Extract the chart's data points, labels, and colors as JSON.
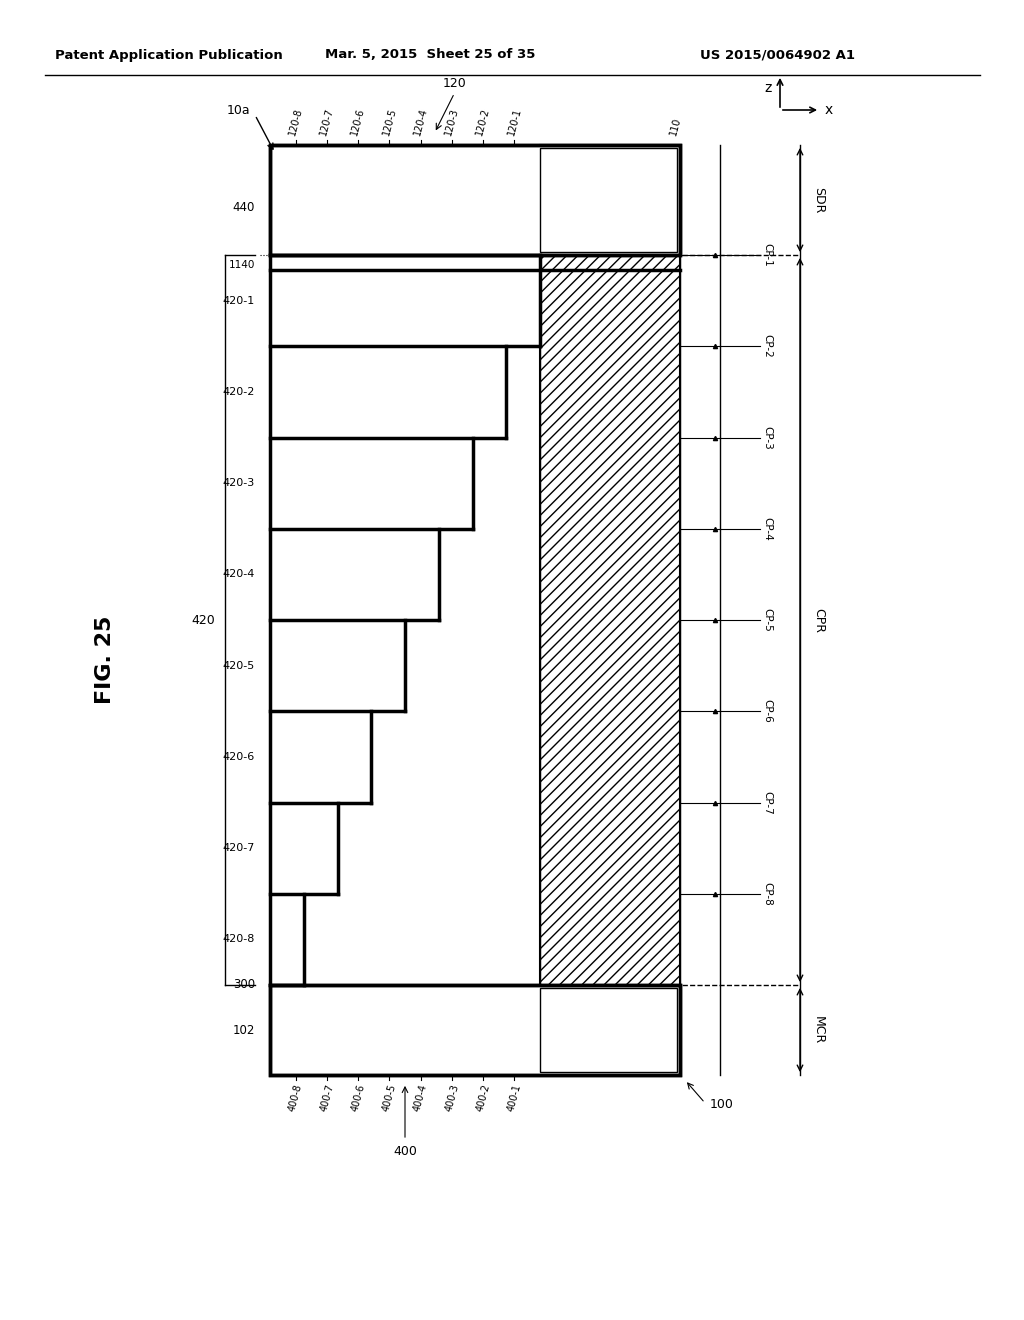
{
  "header_left": "Patent Application Publication",
  "header_mid": "Mar. 5, 2015  Sheet 25 of 35",
  "header_right": "US 2015/0064902 A1",
  "fig_label": "FIG. 25",
  "bg_color": "#ffffff",
  "line_color": "#000000",
  "n_layers": 8,
  "layer_labels": [
    "420-1",
    "420-2",
    "420-3",
    "420-4",
    "420-5",
    "420-6",
    "420-7",
    "420-8"
  ],
  "cp_labels": [
    "CP-1",
    "CP-2",
    "CP-3",
    "CP-4",
    "CP-5",
    "CP-6",
    "CP-7",
    "CP-8"
  ],
  "top_labels": [
    "120-8",
    "120-7",
    "120-6",
    "120-5",
    "120-4",
    "120-3",
    "120-2",
    "120-1",
    "110"
  ],
  "bot_labels": [
    "400-8",
    "400-7",
    "400-6",
    "400-5",
    "400-4",
    "400-3",
    "400-2",
    "400-1"
  ]
}
